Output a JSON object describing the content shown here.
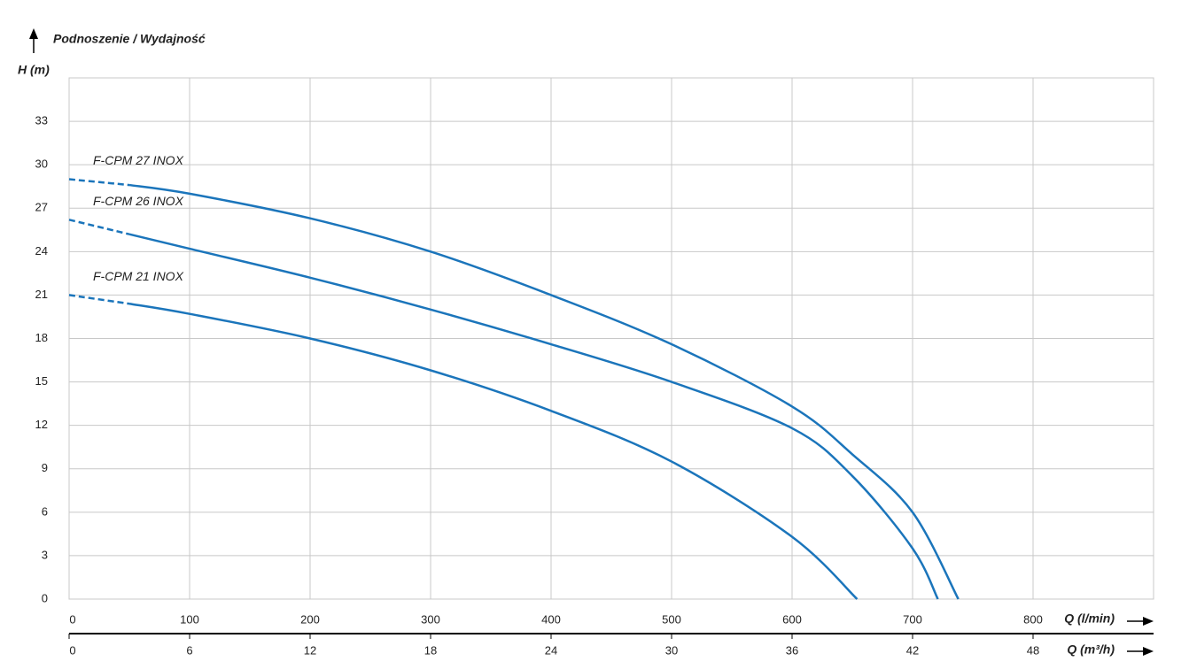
{
  "chart_data": {
    "type": "line",
    "title": "Podnoszenie / Wydajność",
    "y_label": "H (m)",
    "x_label": "Q (l/min)",
    "x2_label": "Q (m³/h)",
    "xlim": [
      0,
      900
    ],
    "xticks": [
      0,
      100,
      200,
      300,
      400,
      500,
      600,
      700,
      800
    ],
    "x2lim": [
      0,
      54
    ],
    "x2ticks": [
      0,
      6,
      12,
      18,
      24,
      30,
      36,
      42,
      48
    ],
    "ylim": [
      0,
      36
    ],
    "yticks": [
      0,
      3,
      6,
      9,
      12,
      15,
      18,
      21,
      24,
      27,
      30,
      33
    ],
    "grid": true,
    "series": [
      {
        "name": "F-CPM 27 INOX",
        "color": "#1b75bb",
        "dashed_until": 50,
        "x": [
          0,
          50,
          100,
          200,
          300,
          400,
          500,
          600,
          650,
          700,
          738
        ],
        "values": [
          29,
          28.6,
          28,
          26.3,
          24,
          21,
          17.6,
          13.3,
          10,
          6,
          0
        ]
      },
      {
        "name": "F-CPM 26 INOX",
        "color": "#1b75bb",
        "dashed_until": 50,
        "x": [
          0,
          50,
          100,
          200,
          300,
          400,
          500,
          600,
          650,
          700,
          721
        ],
        "values": [
          26.2,
          25.2,
          24.2,
          22.2,
          20,
          17.6,
          15,
          11.8,
          8.5,
          3.5,
          0
        ]
      },
      {
        "name": "F-CPM 21 INOX",
        "color": "#1b75bb",
        "dashed_until": 50,
        "x": [
          0,
          50,
          100,
          200,
          300,
          400,
          500,
          600,
          654
        ],
        "values": [
          21,
          20.4,
          19.7,
          18,
          15.8,
          13,
          9.5,
          4.3,
          0
        ]
      }
    ]
  }
}
